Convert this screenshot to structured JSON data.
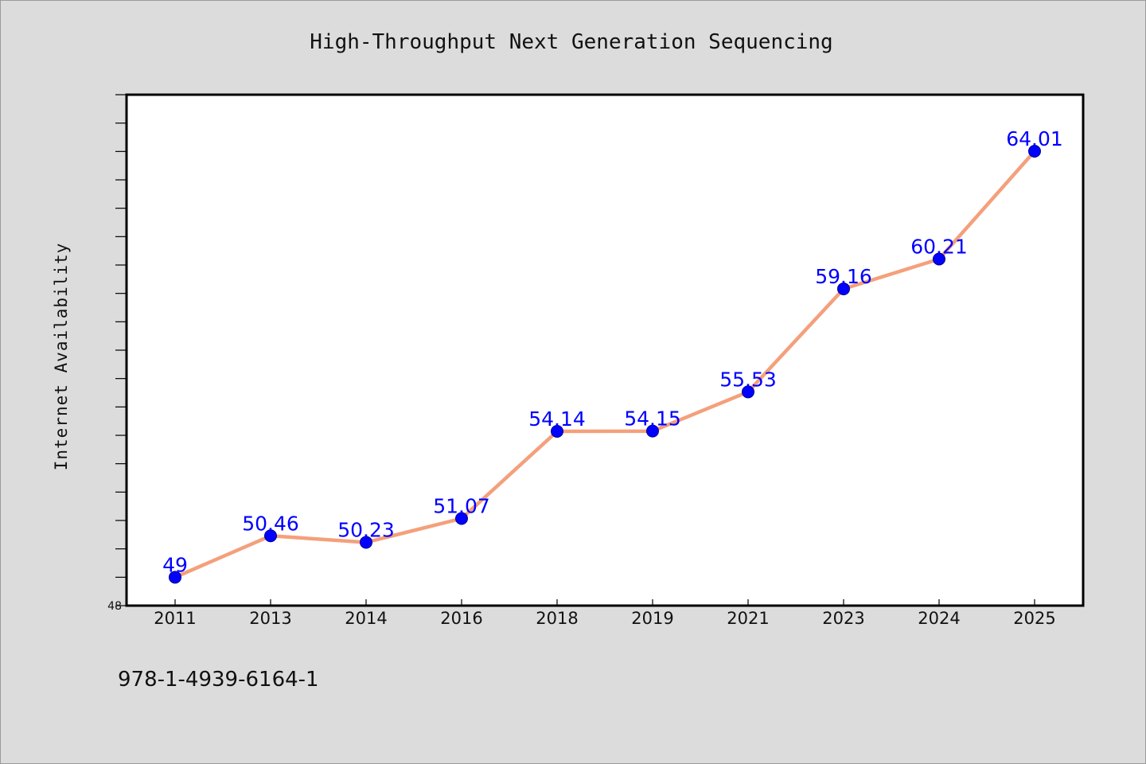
{
  "colors": {
    "background": "#dcdcdc",
    "plot_background": "#ffffff",
    "line": "#f4a07c",
    "marker": "#0000ff",
    "data_label": "#0000ff"
  },
  "footer": {
    "isbn": "978-1-4939-6164-1"
  },
  "chart_data": {
    "type": "line",
    "title": "High-Throughput Next Generation Sequencing",
    "xlabel": "",
    "ylabel": "Internet Availability",
    "categories": [
      "2011",
      "2013",
      "2014",
      "2016",
      "2018",
      "2019",
      "2021",
      "2023",
      "2024",
      "2025"
    ],
    "series": [
      {
        "values": [
          49,
          50.46,
          50.23,
          51.07,
          54.14,
          54.15,
          55.53,
          59.16,
          60.21,
          64.01
        ],
        "labels": [
          "49",
          "50.46",
          "50.23",
          "51.07",
          "54.14",
          "54.15",
          "55.53",
          "59.16",
          "60.21",
          "64.01"
        ]
      }
    ],
    "ylim": [
      48,
      66
    ],
    "ytick_labels": [
      "48"
    ],
    "grid": false,
    "legend": "none",
    "markers": "circle"
  }
}
